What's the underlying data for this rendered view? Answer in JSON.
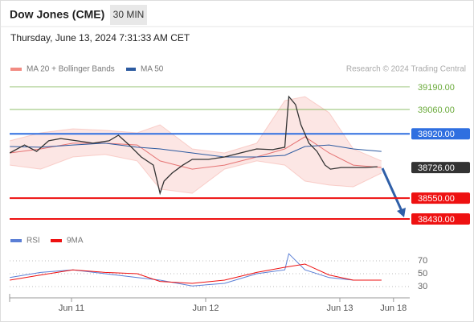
{
  "header": {
    "title": "Dow Jones (CME)",
    "interval": "30 MIN",
    "date": "Thursday, June 13, 2024 7:31:33 AM CET",
    "credit": "Research © 2024 Trading Central"
  },
  "chart_data": [
    {
      "type": "line",
      "xlim": [
        -0.461,
        2.521
      ],
      "ylim": [
        38370,
        39250
      ],
      "xticks": [
        {
          "value": 0,
          "label": "Jun 11"
        },
        {
          "value": 1,
          "label": "Jun 12"
        },
        {
          "value": 2,
          "label": "Jun 13"
        },
        {
          "value": 2.4,
          "label": "Jun 18"
        }
      ],
      "levels": [
        {
          "value": 39190,
          "label": "39190.00",
          "color": "#6aaa3a",
          "style": "support"
        },
        {
          "value": 39060,
          "label": "39060.00",
          "color": "#6aaa3a",
          "style": "support"
        },
        {
          "value": 38920,
          "label": "38920.00",
          "color": "#2f6fe0",
          "style": "pivot"
        },
        {
          "value": 38726,
          "label": "38726.00",
          "color": "#333333",
          "style": "last"
        },
        {
          "value": 38550,
          "label": "38550.00",
          "color": "#ee1111",
          "style": "pivot"
        },
        {
          "value": 38430,
          "label": "38430.00",
          "color": "#ee1111",
          "style": "pivot"
        }
      ],
      "bands": {
        "name": "MA 20 + Bollinger Bands",
        "color": "#f28b82",
        "x": [
          -0.46,
          -0.23,
          0.01,
          0.25,
          0.49,
          0.66,
          0.9,
          1.14,
          1.38,
          1.59,
          1.74,
          1.92,
          2.1,
          2.31
        ],
        "upper": [
          38880,
          38926,
          38949,
          38940,
          38926,
          38972,
          38833,
          38810,
          38866,
          39111,
          39134,
          39042,
          38833,
          38764
        ],
        "lower": [
          38740,
          38717,
          38787,
          38801,
          38764,
          38602,
          38578,
          38717,
          38764,
          38740,
          38648,
          38625,
          38615,
          38694
        ],
        "values": [
          38810,
          38833,
          38866,
          38866,
          38856,
          38764,
          38717,
          38740,
          38787,
          38833,
          38903,
          38810,
          38740,
          38726
        ]
      },
      "series": [
        {
          "name": "MA 50",
          "color": "#2c5aa0",
          "x": [
            -0.46,
            -0.23,
            0.01,
            0.25,
            0.49,
            0.66,
            0.9,
            1.14,
            1.38,
            1.59,
            1.74,
            1.92,
            2.1,
            2.31
          ],
          "values": [
            38847,
            38843,
            38856,
            38866,
            38843,
            38833,
            38810,
            38787,
            38787,
            38796,
            38847,
            38856,
            38833,
            38819
          ]
        },
        {
          "color": "#333333",
          "x": [
            -0.46,
            -0.35,
            -0.26,
            -0.17,
            -0.08,
            0.04,
            0.16,
            0.28,
            0.35,
            0.43,
            0.52,
            0.61,
            0.66,
            0.69,
            0.75,
            0.83,
            0.9,
            1.02,
            1.14,
            1.26,
            1.38,
            1.5,
            1.59,
            1.62,
            1.67,
            1.71,
            1.77,
            1.83,
            1.89,
            1.93,
            2.01,
            2.1,
            2.19,
            2.28
          ],
          "values": [
            38810,
            38856,
            38819,
            38880,
            38893,
            38880,
            38866,
            38880,
            38912,
            38856,
            38787,
            38740,
            38578,
            38648,
            38694,
            38740,
            38773,
            38773,
            38787,
            38810,
            38833,
            38829,
            38843,
            39134,
            39088,
            38972,
            38866,
            38819,
            38740,
            38717,
            38726,
            38726,
            38726,
            38731
          ]
        }
      ]
    },
    {
      "type": "line",
      "xlim": [
        -0.461,
        2.521
      ],
      "ylim": [
        12.5,
        87.5
      ],
      "yticks": [
        30,
        50,
        70
      ],
      "series": [
        {
          "name": "RSI",
          "color": "#5b7fd6",
          "x": [
            -0.46,
            -0.23,
            0.01,
            0.25,
            0.49,
            0.66,
            0.9,
            1.14,
            1.38,
            1.59,
            1.62,
            1.74,
            1.92,
            2.1,
            2.31
          ],
          "values": [
            44,
            52,
            56,
            50,
            44,
            40,
            31,
            35,
            50,
            56,
            81,
            56,
            44,
            40,
            40
          ]
        },
        {
          "name": "9MA",
          "color": "#ee1111",
          "x": [
            -0.46,
            -0.23,
            0.01,
            0.25,
            0.49,
            0.66,
            0.9,
            1.14,
            1.38,
            1.59,
            1.74,
            1.92,
            2.1,
            2.31
          ],
          "values": [
            40,
            48,
            56,
            52,
            50,
            38,
            35,
            40,
            52,
            60,
            65,
            48,
            40,
            40
          ]
        }
      ]
    }
  ]
}
